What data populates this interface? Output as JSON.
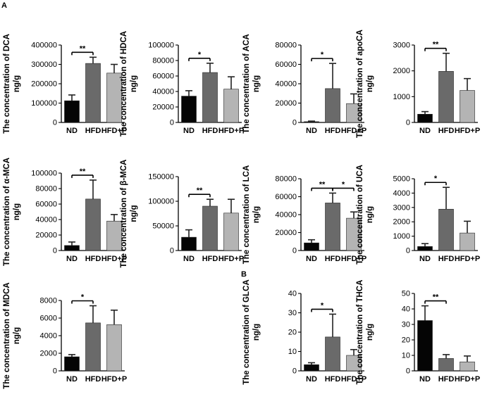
{
  "figure": {
    "panel_labels": [
      "A",
      "B"
    ]
  },
  "chart_data": [
    {
      "type": "bar",
      "panel": "A",
      "title": "",
      "ylabel": "The concentration of DCA",
      "yunit": "ng/g",
      "categories": [
        "ND",
        "HFD",
        "HFD+P"
      ],
      "values": [
        112000,
        305000,
        255000
      ],
      "errors": [
        30000,
        32000,
        45000
      ],
      "ylim": [
        0,
        400000
      ],
      "yticks": [
        0,
        100000,
        200000,
        300000,
        400000
      ],
      "ytick_labels": [
        "0",
        "100000",
        "200000",
        "300000",
        "400000"
      ],
      "bar_colors": [
        "#050505",
        "#6a6a6a",
        "#b4b4b4"
      ],
      "significance": [
        {
          "from": 0,
          "to": 1,
          "label": "**"
        }
      ]
    },
    {
      "type": "bar",
      "panel": "A",
      "title": "",
      "ylabel": "The concentration of HDCA",
      "yunit": "ng/g",
      "categories": [
        "ND",
        "HFD",
        "HFD+P"
      ],
      "values": [
        34000,
        64500,
        43000
      ],
      "errors": [
        7000,
        12000,
        16000
      ],
      "ylim": [
        0,
        100000
      ],
      "yticks": [
        0,
        20000,
        40000,
        60000,
        80000,
        100000
      ],
      "ytick_labels": [
        "0",
        "20000",
        "40000",
        "60000",
        "80000",
        "100000"
      ],
      "bar_colors": [
        "#050505",
        "#6a6a6a",
        "#b4b4b4"
      ],
      "significance": [
        {
          "from": 0,
          "to": 1,
          "label": "*"
        }
      ]
    },
    {
      "type": "bar",
      "panel": "A",
      "title": "",
      "ylabel": "The concentration of ACA",
      "yunit": "ng/g",
      "categories": [
        "ND",
        "HFD",
        "HFD+P"
      ],
      "values": [
        800,
        35000,
        19500
      ],
      "errors": [
        600,
        26000,
        10000
      ],
      "ylim": [
        0,
        80000
      ],
      "yticks": [
        0,
        20000,
        40000,
        60000,
        80000
      ],
      "ytick_labels": [
        "0",
        "20000",
        "40000",
        "60000",
        "80000"
      ],
      "bar_colors": [
        "#050505",
        "#6a6a6a",
        "#b4b4b4"
      ],
      "significance": [
        {
          "from": 0,
          "to": 1,
          "label": "*"
        }
      ]
    },
    {
      "type": "bar",
      "panel": "A",
      "title": "",
      "ylabel": "The concentration of apoCA",
      "yunit": "ng/g",
      "categories": [
        "ND",
        "HFD",
        "HFD+P"
      ],
      "values": [
        320,
        1980,
        1240
      ],
      "errors": [
        100,
        700,
        460
      ],
      "ylim": [
        0,
        3000
      ],
      "yticks": [
        0,
        1000,
        2000,
        3000
      ],
      "ytick_labels": [
        "0",
        "1000",
        "2000",
        "3000"
      ],
      "bar_colors": [
        "#050505",
        "#6a6a6a",
        "#b4b4b4"
      ],
      "significance": [
        {
          "from": 0,
          "to": 1,
          "label": "**"
        }
      ]
    },
    {
      "type": "bar",
      "panel": "A",
      "title": "",
      "ylabel": "The concentration of α-MCA",
      "yunit": "ng/g",
      "categories": [
        "ND",
        "HFD",
        "HFD+P"
      ],
      "values": [
        6500,
        66500,
        38000
      ],
      "errors": [
        4500,
        24500,
        8500
      ],
      "ylim": [
        0,
        100000
      ],
      "yticks": [
        0,
        20000,
        40000,
        60000,
        80000,
        100000
      ],
      "ytick_labels": [
        "0",
        "20000",
        "40000",
        "60000",
        "80000",
        "100000"
      ],
      "bar_colors": [
        "#050505",
        "#6a6a6a",
        "#b4b4b4"
      ],
      "significance": [
        {
          "from": 0,
          "to": 1,
          "label": "**"
        }
      ]
    },
    {
      "type": "bar",
      "panel": "A",
      "title": "",
      "ylabel": "The concentration of β-MCA",
      "yunit": "ng/g",
      "categories": [
        "ND",
        "HFD",
        "HFD+P"
      ],
      "values": [
        27000,
        90000,
        76000
      ],
      "errors": [
        15000,
        14000,
        28000
      ],
      "ylim": [
        0,
        150000
      ],
      "yticks": [
        0,
        50000,
        100000,
        150000
      ],
      "ytick_labels": [
        "0",
        "50000",
        "100000",
        "150000"
      ],
      "bar_colors": [
        "#050505",
        "#6a6a6a",
        "#b4b4b4"
      ],
      "significance": [
        {
          "from": 0,
          "to": 1,
          "label": "**"
        }
      ]
    },
    {
      "type": "bar",
      "panel": "A",
      "title": "",
      "ylabel": "The concentration of LCA",
      "yunit": "ng/g",
      "categories": [
        "ND",
        "HFD",
        "HFD+P"
      ],
      "values": [
        8500,
        53000,
        36000
      ],
      "errors": [
        3500,
        11000,
        7000
      ],
      "ylim": [
        0,
        80000
      ],
      "yticks": [
        0,
        20000,
        40000,
        60000,
        80000
      ],
      "ytick_labels": [
        "0",
        "20000",
        "40000",
        "60000",
        "80000"
      ],
      "bar_colors": [
        "#050505",
        "#6a6a6a",
        "#b4b4b4"
      ],
      "significance": [
        {
          "from": 0,
          "to": 1,
          "label": "**"
        },
        {
          "from": 1,
          "to": 2,
          "label": "*"
        }
      ]
    },
    {
      "type": "bar",
      "panel": "A",
      "title": "",
      "ylabel": "The concentration of UCA",
      "yunit": "ng/g",
      "categories": [
        "ND",
        "HFD",
        "HFD+P"
      ],
      "values": [
        280,
        2880,
        1220
      ],
      "errors": [
        200,
        1520,
        820
      ],
      "ylim": [
        0,
        5000
      ],
      "yticks": [
        0,
        1000,
        2000,
        3000,
        4000,
        5000
      ],
      "ytick_labels": [
        "0",
        "1000",
        "2000",
        "3000",
        "4000",
        "5000"
      ],
      "bar_colors": [
        "#050505",
        "#6a6a6a",
        "#b4b4b4"
      ],
      "significance": [
        {
          "from": 0,
          "to": 1,
          "label": "*"
        }
      ]
    },
    {
      "type": "bar",
      "panel": "A",
      "title": "",
      "ylabel": "The concentration of MDCA",
      "yunit": "ng/g",
      "categories": [
        "ND",
        "HFD",
        "HFD+P"
      ],
      "values": [
        1600,
        5450,
        5250
      ],
      "errors": [
        250,
        1950,
        1650
      ],
      "ylim": [
        0,
        8000
      ],
      "yticks": [
        0,
        2000,
        4000,
        6000,
        8000
      ],
      "ytick_labels": [
        "0",
        "2000",
        "4000",
        "6000",
        "8000"
      ],
      "bar_colors": [
        "#050505",
        "#6a6a6a",
        "#b4b4b4"
      ],
      "significance": [
        {
          "from": 0,
          "to": 1,
          "label": "*"
        }
      ]
    },
    {
      "type": "bar",
      "panel": "B",
      "title": "",
      "ylabel": "The concentration of GLCA",
      "yunit": "ng/g",
      "categories": [
        "ND",
        "HFD",
        "HFD+P"
      ],
      "values": [
        3.2,
        17.5,
        8.0
      ],
      "errors": [
        1.0,
        11.8,
        3.0
      ],
      "ylim": [
        0,
        40
      ],
      "yticks": [
        0,
        10,
        20,
        30,
        40
      ],
      "ytick_labels": [
        "0",
        "10",
        "20",
        "30",
        "40"
      ],
      "bar_colors": [
        "#050505",
        "#6a6a6a",
        "#b4b4b4"
      ],
      "significance": [
        {
          "from": 0,
          "to": 1,
          "label": "*"
        }
      ]
    },
    {
      "type": "bar",
      "panel": "B",
      "title": "",
      "ylabel": "The concentration of THCA",
      "yunit": "ng/g",
      "categories": [
        "ND",
        "HFD",
        "HFD+P"
      ],
      "values": [
        32.5,
        8.0,
        5.8
      ],
      "errors": [
        9.5,
        2.5,
        3.8
      ],
      "ylim": [
        0,
        50
      ],
      "yticks": [
        0,
        10,
        20,
        30,
        40,
        50
      ],
      "ytick_labels": [
        "0",
        "10",
        "20",
        "30",
        "40",
        "50"
      ],
      "bar_colors": [
        "#050505",
        "#6a6a6a",
        "#b4b4b4"
      ],
      "significance": [
        {
          "from": 0,
          "to": 1,
          "label": "**"
        }
      ]
    }
  ]
}
